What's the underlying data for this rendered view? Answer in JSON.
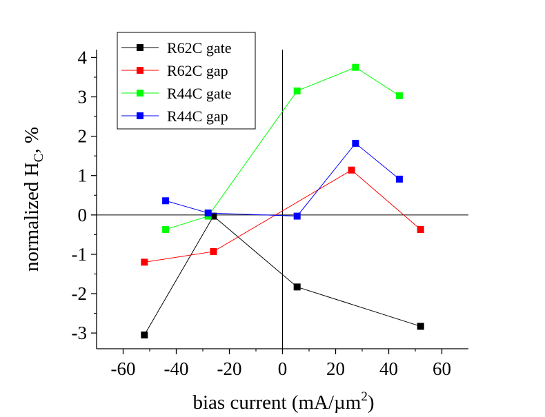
{
  "chart_data": {
    "type": "line",
    "title": "",
    "xlabel": "bias current (mA/µm",
    "xlabel_sup": "2",
    "xlabel_close": ")",
    "ylabel": "normalized H",
    "ylabel_sub": "C",
    "ylabel_suffix": ", %",
    "xlim": [
      -70,
      70
    ],
    "ylim": [
      -3.4,
      4.2
    ],
    "xticks": [
      -60,
      -40,
      -20,
      0,
      20,
      40,
      60
    ],
    "yticks": [
      -3,
      -2,
      -1,
      0,
      1,
      2,
      3,
      4
    ],
    "grid": false,
    "legend_position": "top-left",
    "series": [
      {
        "name": "R62C gate",
        "color": "#000000",
        "points": [
          [
            -52,
            -3.05
          ],
          [
            -26,
            -0.03
          ],
          [
            5.5,
            -1.83
          ],
          [
            52,
            -2.83
          ]
        ]
      },
      {
        "name": "R62C gap",
        "color": "#ff0000",
        "points": [
          [
            -52,
            -1.2
          ],
          [
            -26,
            -0.93
          ],
          [
            26,
            1.14
          ],
          [
            52,
            -0.37
          ]
        ]
      },
      {
        "name": "R44C gate",
        "color": "#00ff00",
        "points": [
          [
            -44,
            -0.37
          ],
          [
            -28,
            -0.03
          ],
          [
            5.5,
            3.15
          ],
          [
            27.5,
            3.75
          ],
          [
            44,
            3.03
          ]
        ]
      },
      {
        "name": "R44C gap",
        "color": "#0000ff",
        "points": [
          [
            -44,
            0.36
          ],
          [
            -28,
            0.05
          ],
          [
            5.5,
            -0.03
          ],
          [
            27.5,
            1.82
          ],
          [
            44,
            0.91
          ]
        ]
      }
    ]
  }
}
